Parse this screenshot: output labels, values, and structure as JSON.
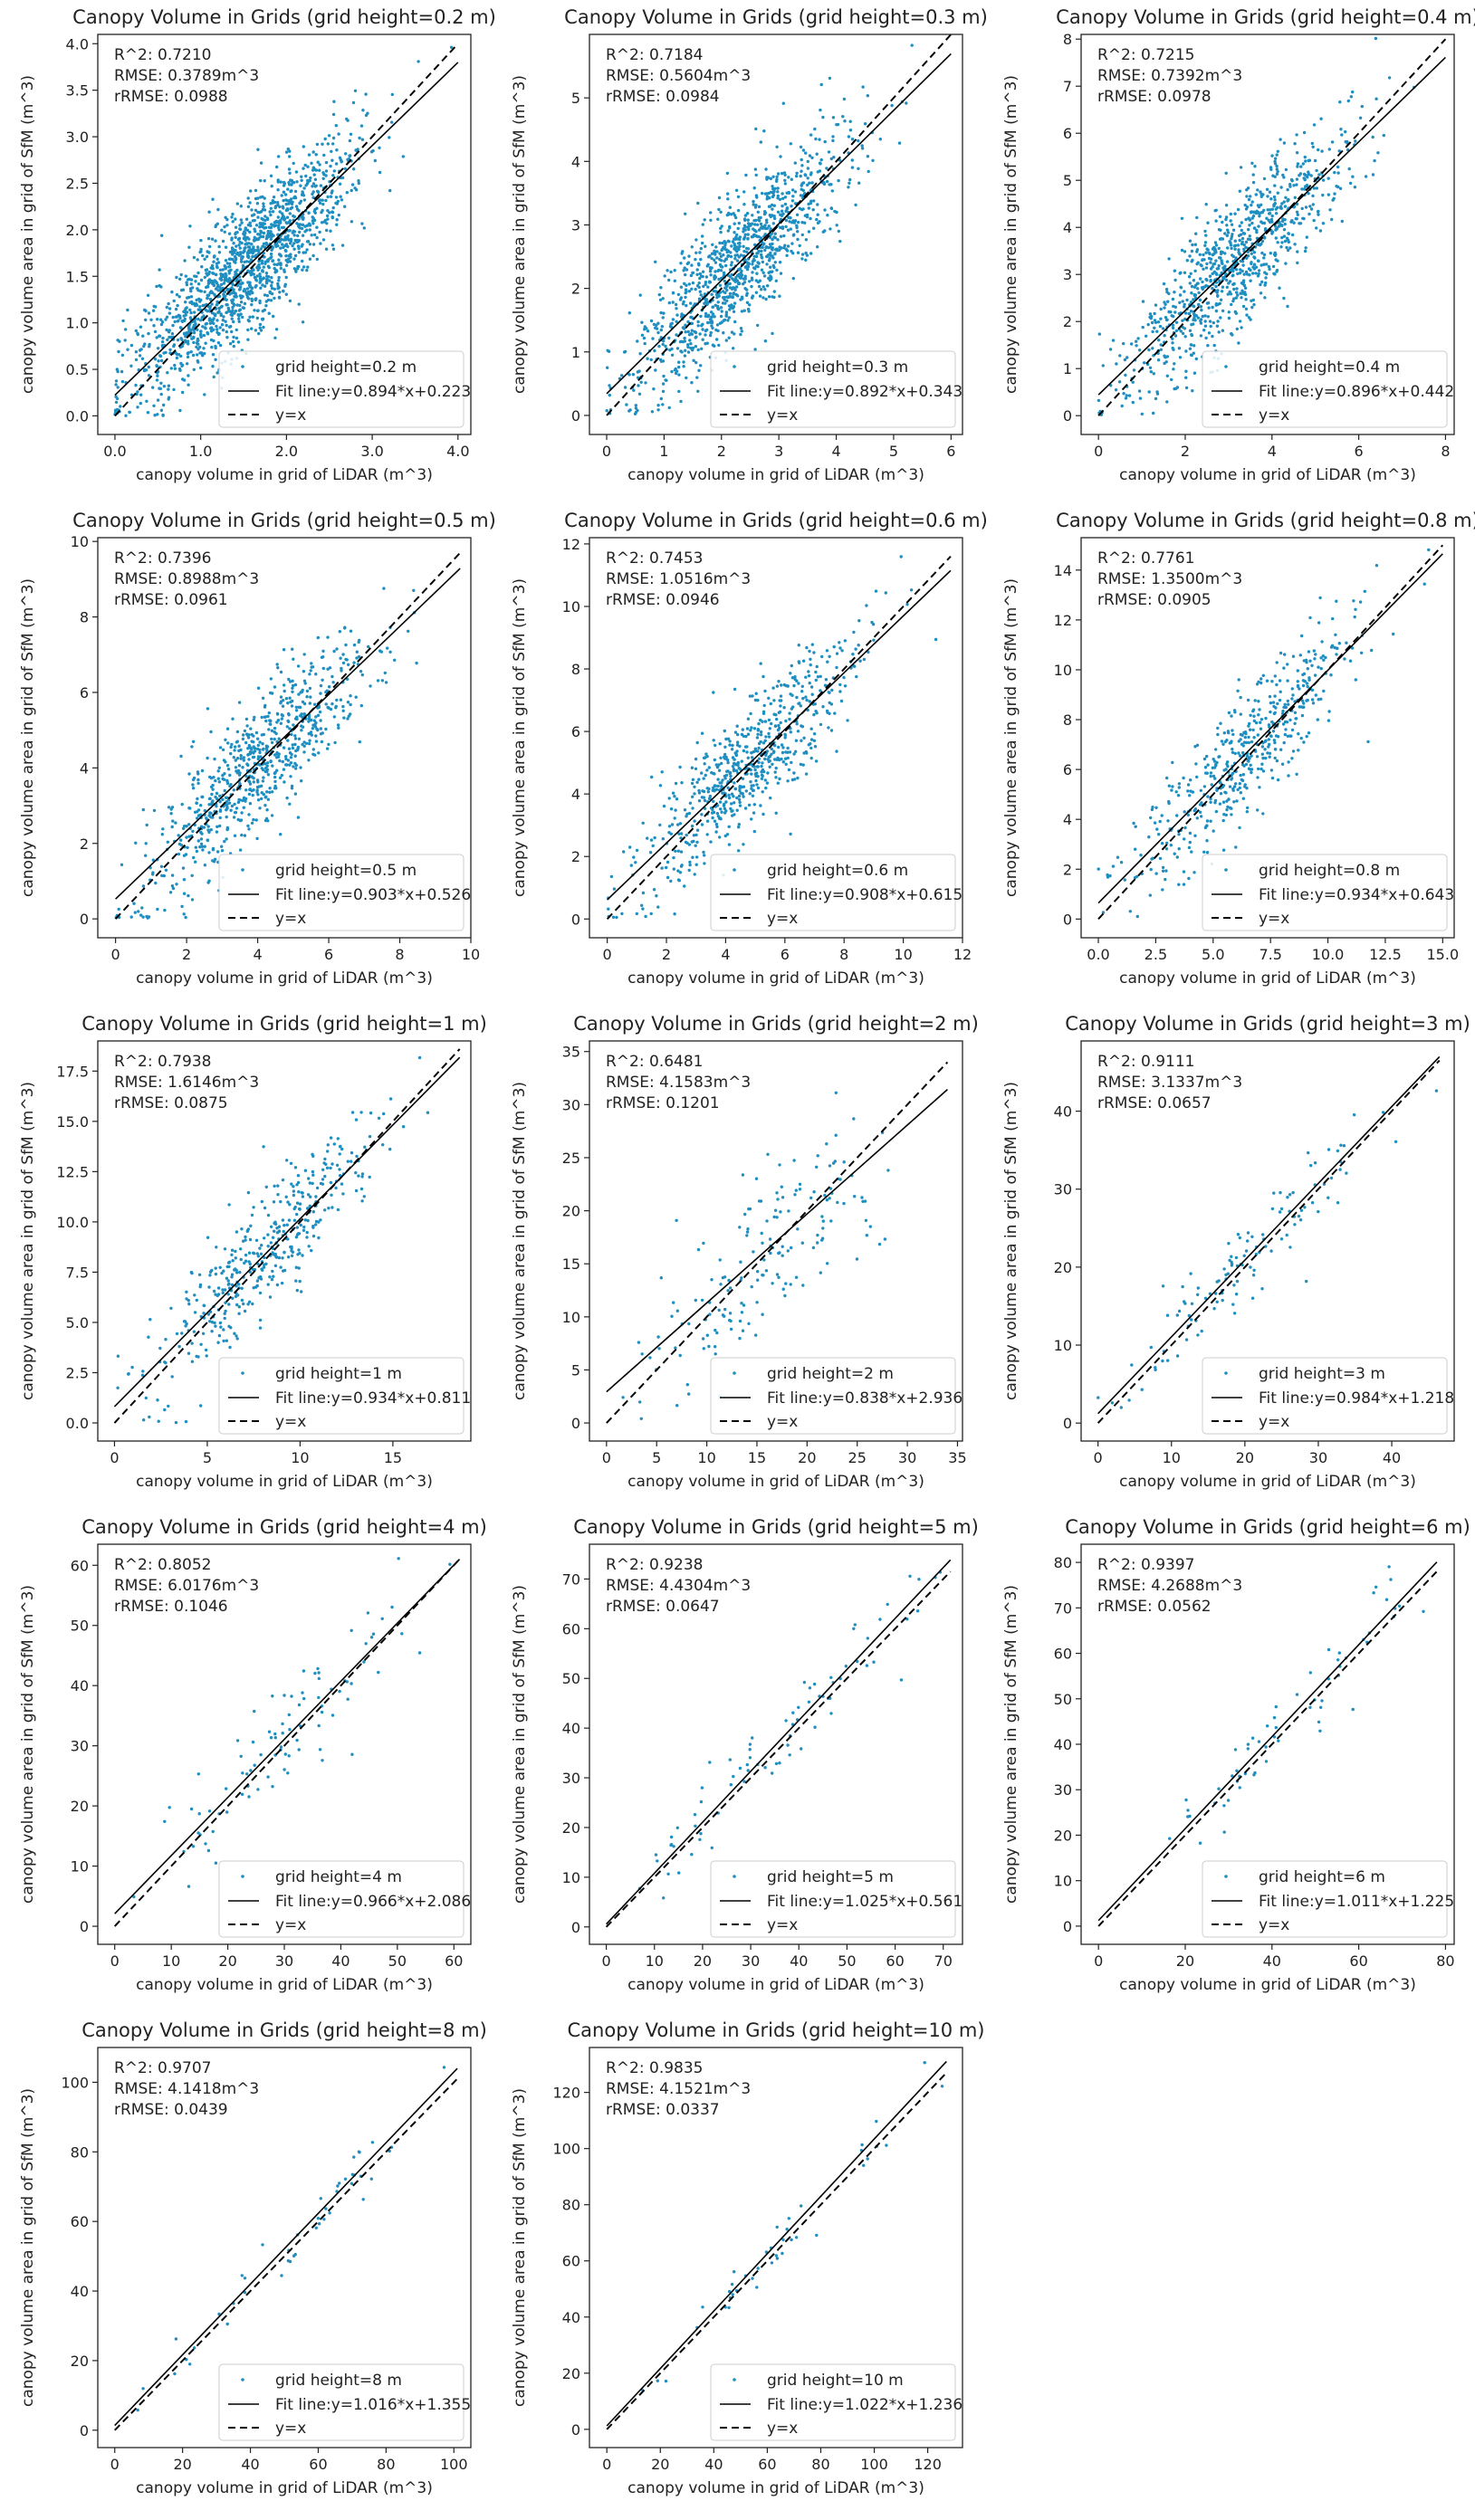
{
  "colors": {
    "points": "#1f8ec0",
    "lines": "#000000"
  },
  "chart_data": [
    {
      "type": "scatter",
      "title": "Canopy Volume in Grids (grid height=0.2 m)",
      "xlabel": "canopy volume in grid of LiDAR (m^3)",
      "ylabel": "canopy volume area in grid of SfM (m^3)",
      "xlim": [
        -0.2,
        4.15
      ],
      "ylim": [
        -0.2,
        4.1
      ],
      "xticks": [
        0,
        1,
        2,
        3,
        4
      ],
      "yticks": [
        0.0,
        0.5,
        1.0,
        1.5,
        2.0,
        2.5,
        3.0,
        3.5,
        4.0
      ],
      "tick_decimals": 1,
      "stats": [
        "R^2: 0.7210",
        "RMSE: 0.3789m^3",
        "rRMSE: 0.0988"
      ],
      "legend": {
        "points": "grid height=0.2 m",
        "fit": "Fit line:y=0.894*x+0.223",
        "identity": "y=x"
      },
      "fit": {
        "slope": 0.894,
        "intercept": 0.223
      },
      "line_range": [
        0,
        4.0
      ],
      "n_points": 1500,
      "mean": 1.5,
      "spread": 0.65,
      "noise": 0.36
    },
    {
      "type": "scatter",
      "title": "Canopy Volume in Grids (grid height=0.3 m)",
      "xlabel": "canopy volume in grid of LiDAR (m^3)",
      "ylabel": "canopy volume area in grid of SfM (m^3)",
      "xlim": [
        -0.3,
        6.2
      ],
      "ylim": [
        -0.3,
        6.0
      ],
      "xticks": [
        0,
        1,
        2,
        3,
        4,
        5,
        6
      ],
      "yticks": [
        0,
        1,
        2,
        3,
        4,
        5
      ],
      "tick_decimals": 0,
      "stats": [
        "R^2: 0.7184",
        "RMSE: 0.5604m^3",
        "rRMSE: 0.0984"
      ],
      "legend": {
        "points": "grid height=0.3 m",
        "fit": "Fit line:y=0.892*x+0.343",
        "identity": "y=x"
      },
      "fit": {
        "slope": 0.892,
        "intercept": 0.343
      },
      "line_range": [
        0,
        6.0
      ],
      "n_points": 1100,
      "mean": 2.3,
      "spread": 0.95,
      "noise": 0.55
    },
    {
      "type": "scatter",
      "title": "Canopy Volume in Grids (grid height=0.4 m)",
      "xlabel": "canopy volume in grid of LiDAR (m^3)",
      "ylabel": "canopy volume area in grid of SfM (m^3)",
      "xlim": [
        -0.4,
        8.2
      ],
      "ylim": [
        -0.4,
        8.1
      ],
      "xticks": [
        0,
        2,
        4,
        6,
        8
      ],
      "yticks": [
        0,
        1,
        2,
        3,
        4,
        5,
        6,
        7,
        8
      ],
      "tick_decimals": 0,
      "stats": [
        "R^2: 0.7215",
        "RMSE: 0.7392m^3",
        "rRMSE: 0.0978"
      ],
      "legend": {
        "points": "grid height=0.4 m",
        "fit": "Fit line:y=0.896*x+0.442",
        "identity": "y=x"
      },
      "fit": {
        "slope": 0.896,
        "intercept": 0.442
      },
      "line_range": [
        0,
        8.0
      ],
      "n_points": 900,
      "mean": 3.2,
      "spread": 1.25,
      "noise": 0.72
    },
    {
      "type": "scatter",
      "title": "Canopy Volume in Grids (grid height=0.5 m)",
      "xlabel": "canopy volume in grid of LiDAR (m^3)",
      "ylabel": "canopy volume area in grid of SfM (m^3)",
      "xlim": [
        -0.5,
        10.0
      ],
      "ylim": [
        -0.5,
        10.1
      ],
      "xticks": [
        0,
        2,
        4,
        6,
        8,
        10
      ],
      "yticks": [
        0,
        2,
        4,
        6,
        8,
        10
      ],
      "tick_decimals": 0,
      "stats": [
        "R^2: 0.7396",
        "RMSE: 0.8988m^3",
        "rRMSE: 0.0961"
      ],
      "legend": {
        "points": "grid height=0.5 m",
        "fit": "Fit line:y=0.903*x+0.526",
        "identity": "y=x"
      },
      "fit": {
        "slope": 0.903,
        "intercept": 0.526
      },
      "line_range": [
        0,
        9.7
      ],
      "n_points": 750,
      "mean": 4.0,
      "spread": 1.55,
      "noise": 0.85
    },
    {
      "type": "scatter",
      "title": "Canopy Volume in Grids (grid height=0.6 m)",
      "xlabel": "canopy volume in grid of LiDAR (m^3)",
      "ylabel": "canopy volume area in grid of SfM (m^3)",
      "xlim": [
        -0.6,
        12.0
      ],
      "ylim": [
        -0.6,
        12.2
      ],
      "xticks": [
        0,
        2,
        4,
        6,
        8,
        10,
        12
      ],
      "yticks": [
        0,
        2,
        4,
        6,
        8,
        10,
        12
      ],
      "tick_decimals": 0,
      "stats": [
        "R^2: 0.7453",
        "RMSE: 1.0516m^3",
        "rRMSE: 0.0946"
      ],
      "legend": {
        "points": "grid height=0.6 m",
        "fit": "Fit line:y=0.908*x+0.615",
        "identity": "y=x"
      },
      "fit": {
        "slope": 0.908,
        "intercept": 0.615
      },
      "line_range": [
        0,
        11.6
      ],
      "n_points": 650,
      "mean": 4.8,
      "spread": 1.85,
      "noise": 1.0
    },
    {
      "type": "scatter",
      "title": "Canopy Volume in Grids (grid height=0.8 m)",
      "xlabel": "canopy volume in grid of LiDAR (m^3)",
      "ylabel": "canopy volume area in grid of SfM (m^3)",
      "xlim": [
        -0.75,
        15.5
      ],
      "ylim": [
        -0.75,
        15.3
      ],
      "xticks": [
        0.0,
        2.5,
        5.0,
        7.5,
        10.0,
        12.5,
        15.0
      ],
      "yticks": [
        0,
        2,
        4,
        6,
        8,
        10,
        12,
        14
      ],
      "tick_decimals": 1,
      "y_tick_decimals": 0,
      "stats": [
        "R^2: 0.7761",
        "RMSE: 1.3500m^3",
        "rRMSE: 0.0905"
      ],
      "legend": {
        "points": "grid height=0.8 m",
        "fit": "Fit line:y=0.934*x+0.643",
        "identity": "y=x"
      },
      "fit": {
        "slope": 0.934,
        "intercept": 0.643
      },
      "line_range": [
        0,
        15.0
      ],
      "n_points": 500,
      "mean": 6.3,
      "spread": 2.4,
      "noise": 1.25
    },
    {
      "type": "scatter",
      "title": "Canopy Volume in Grids (grid height=1 m)",
      "xlabel": "canopy volume in grid of LiDAR (m^3)",
      "ylabel": "canopy volume area in grid of SfM (m^3)",
      "xlim": [
        -0.9,
        19.2
      ],
      "ylim": [
        -0.9,
        19.0
      ],
      "xticks": [
        0,
        5,
        10,
        15
      ],
      "yticks": [
        0.0,
        2.5,
        5.0,
        7.5,
        10.0,
        12.5,
        15.0,
        17.5
      ],
      "tick_decimals": 0,
      "y_tick_decimals": 1,
      "stats": [
        "R^2: 0.7938",
        "RMSE: 1.6146m^3",
        "rRMSE: 0.0875"
      ],
      "legend": {
        "points": "grid height=1 m",
        "fit": "Fit line:y=0.934*x+0.811",
        "identity": "y=x"
      },
      "fit": {
        "slope": 0.934,
        "intercept": 0.811
      },
      "line_range": [
        0,
        18.6
      ],
      "n_points": 420,
      "mean": 8.0,
      "spread": 3.0,
      "noise": 1.5
    },
    {
      "type": "scatter",
      "title": "Canopy Volume in Grids (grid height=2 m)",
      "xlabel": "canopy volume in grid of LiDAR (m^3)",
      "ylabel": "canopy volume area in grid of SfM (m^3)",
      "xlim": [
        -1.7,
        35.5
      ],
      "ylim": [
        -1.7,
        36.0
      ],
      "xticks": [
        0,
        5,
        10,
        15,
        20,
        25,
        30,
        35
      ],
      "yticks": [
        0,
        5,
        10,
        15,
        20,
        25,
        30,
        35
      ],
      "tick_decimals": 0,
      "stats": [
        "R^2: 0.6481",
        "RMSE: 4.1583m^3",
        "rRMSE: 0.1201"
      ],
      "legend": {
        "points": "grid height=2 m",
        "fit": "Fit line:y=0.838*x+2.936",
        "identity": "y=x"
      },
      "fit": {
        "slope": 0.838,
        "intercept": 2.936
      },
      "line_range": [
        0,
        34.0
      ],
      "n_points": 170,
      "mean": 15.5,
      "spread": 6.0,
      "noise": 4.0
    },
    {
      "type": "scatter",
      "title": "Canopy Volume in Grids (grid height=3 m)",
      "xlabel": "canopy volume in grid of LiDAR (m^3)",
      "ylabel": "canopy volume area in grid of SfM (m^3)",
      "xlim": [
        -2.3,
        48.5
      ],
      "ylim": [
        -2.3,
        49.0
      ],
      "xticks": [
        0,
        10,
        20,
        30,
        40
      ],
      "yticks": [
        0,
        10,
        20,
        30,
        40
      ],
      "tick_decimals": 0,
      "stats": [
        "R^2: 0.9111",
        "RMSE: 3.1337m^3",
        "rRMSE: 0.0657"
      ],
      "legend": {
        "points": "grid height=3 m",
        "fit": "Fit line:y=0.984*x+1.218",
        "identity": "y=x"
      },
      "fit": {
        "slope": 0.984,
        "intercept": 1.218
      },
      "line_range": [
        0,
        46.5
      ],
      "n_points": 120,
      "mean": 22.0,
      "spread": 9.0,
      "noise": 3.0
    },
    {
      "type": "scatter",
      "title": "Canopy Volume in Grids (grid height=4 m)",
      "xlabel": "canopy volume in grid of LiDAR (m^3)",
      "ylabel": "canopy volume area in grid of SfM (m^3)",
      "xlim": [
        -3.0,
        63.0
      ],
      "ylim": [
        -3.0,
        63.5
      ],
      "xticks": [
        0,
        10,
        20,
        30,
        40,
        50,
        60
      ],
      "yticks": [
        0,
        10,
        20,
        30,
        40,
        50,
        60
      ],
      "tick_decimals": 0,
      "stats": [
        "R^2: 0.8052",
        "RMSE: 6.0176m^3",
        "rRMSE: 0.1046"
      ],
      "legend": {
        "points": "grid height=4 m",
        "fit": "Fit line:y=0.966*x+2.086",
        "identity": "y=x"
      },
      "fit": {
        "slope": 0.966,
        "intercept": 2.086
      },
      "line_range": [
        0,
        61.0
      ],
      "n_points": 90,
      "mean": 30.0,
      "spread": 11.0,
      "noise": 5.0
    },
    {
      "type": "scatter",
      "title": "Canopy Volume in Grids (grid height=5 m)",
      "xlabel": "canopy volume in grid of LiDAR (m^3)",
      "ylabel": "canopy volume area in grid of SfM (m^3)",
      "xlim": [
        -3.5,
        74.0
      ],
      "ylim": [
        -3.5,
        77.0
      ],
      "xticks": [
        0,
        10,
        20,
        30,
        40,
        50,
        60,
        70
      ],
      "yticks": [
        0,
        10,
        20,
        30,
        40,
        50,
        60,
        70
      ],
      "tick_decimals": 0,
      "stats": [
        "R^2: 0.9238",
        "RMSE: 4.4304m^3",
        "rRMSE: 0.0647"
      ],
      "legend": {
        "points": "grid height=5 m",
        "fit": "Fit line:y=1.025*x+0.561",
        "identity": "y=x"
      },
      "fit": {
        "slope": 1.025,
        "intercept": 0.561
      },
      "line_range": [
        0,
        71.5
      ],
      "n_points": 75,
      "mean": 36.0,
      "spread": 14.0,
      "noise": 4.3
    },
    {
      "type": "scatter",
      "title": "Canopy Volume in Grids (grid height=6 m)",
      "xlabel": "canopy volume in grid of LiDAR (m^3)",
      "ylabel": "canopy volume area in grid of SfM (m^3)",
      "xlim": [
        -4.0,
        82.0
      ],
      "ylim": [
        -4.0,
        84.0
      ],
      "xticks": [
        0,
        20,
        40,
        60,
        80
      ],
      "yticks": [
        0,
        10,
        20,
        30,
        40,
        50,
        60,
        70,
        80
      ],
      "tick_decimals": 0,
      "stats": [
        "R^2: 0.9397",
        "RMSE: 4.2688m^3",
        "rRMSE: 0.0562"
      ],
      "legend": {
        "points": "grid height=6 m",
        "fit": "Fit line:y=1.011*x+1.225",
        "identity": "y=x"
      },
      "fit": {
        "slope": 1.011,
        "intercept": 1.225
      },
      "line_range": [
        0,
        78.0
      ],
      "n_points": 60,
      "mean": 42.0,
      "spread": 15.0,
      "noise": 4.2
    },
    {
      "type": "scatter",
      "title": "Canopy Volume in Grids (grid height=8 m)",
      "xlabel": "canopy volume in grid of LiDAR (m^3)",
      "ylabel": "canopy volume area in grid of SfM (m^3)",
      "xlim": [
        -5.0,
        105.0
      ],
      "ylim": [
        -5.0,
        110.0
      ],
      "xticks": [
        0,
        20,
        40,
        60,
        80,
        100
      ],
      "yticks": [
        0,
        20,
        40,
        60,
        80,
        100
      ],
      "tick_decimals": 0,
      "stats": [
        "R^2: 0.9707",
        "RMSE: 4.1418m^3",
        "rRMSE: 0.0439"
      ],
      "legend": {
        "points": "grid height=8 m",
        "fit": "Fit line:y=1.016*x+1.355",
        "identity": "y=x"
      },
      "fit": {
        "slope": 1.016,
        "intercept": 1.355
      },
      "line_range": [
        0,
        101.0
      ],
      "n_points": 45,
      "mean": 55.0,
      "spread": 21.0,
      "noise": 4.0
    },
    {
      "type": "scatter",
      "title": "Canopy Volume in Grids (grid height=10 m)",
      "xlabel": "canopy volume in grid of LiDAR (m^3)",
      "ylabel": "canopy volume area in grid of SfM (m^3)",
      "xlim": [
        -6.5,
        133.0
      ],
      "ylim": [
        -6.5,
        136.0
      ],
      "xticks": [
        0,
        20,
        40,
        60,
        80,
        100,
        120
      ],
      "yticks": [
        0,
        20,
        40,
        60,
        80,
        100,
        120
      ],
      "tick_decimals": 0,
      "stats": [
        "R^2: 0.9835",
        "RMSE: 4.1521m^3",
        "rRMSE: 0.0337"
      ],
      "legend": {
        "points": "grid height=10 m",
        "fit": "Fit line:y=1.022*x+1.236",
        "identity": "y=x"
      },
      "fit": {
        "slope": 1.022,
        "intercept": 1.236
      },
      "line_range": [
        0,
        127.0
      ],
      "n_points": 40,
      "mean": 65.0,
      "spread": 26.0,
      "noise": 4.1
    }
  ]
}
